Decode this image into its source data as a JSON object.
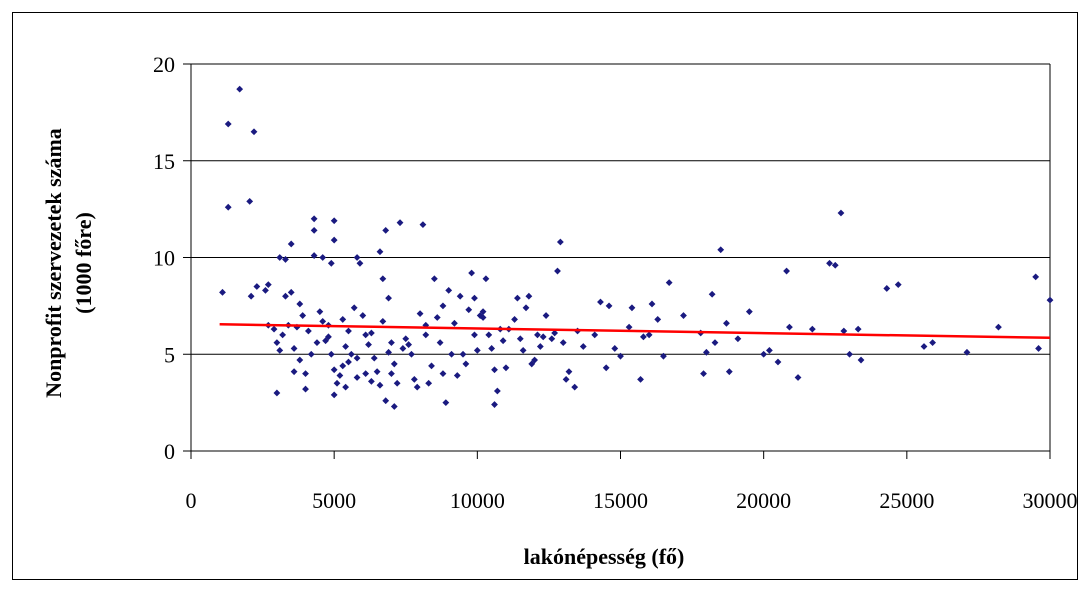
{
  "chart_data": {
    "type": "scatter",
    "title": "",
    "xlabel": "lakónépesség (fő)",
    "ylabel_line1": "Nonprofit szervezetek száma",
    "ylabel_line2": "(1000 főre)",
    "xlim": [
      0,
      30000
    ],
    "ylim": [
      0,
      20
    ],
    "x_ticks": [
      0,
      5000,
      10000,
      15000,
      20000,
      25000,
      30000
    ],
    "y_ticks": [
      0,
      5,
      10,
      15,
      20
    ],
    "grid": "horizontal",
    "legend": "none",
    "colors": {
      "points": "#1a1a80",
      "trendline": "#ff0000",
      "gridline": "#000000"
    },
    "series": [
      {
        "points": [
          [
            1300,
            16.9
          ],
          [
            1700,
            18.7
          ],
          [
            2200,
            16.5
          ],
          [
            2050,
            12.9
          ],
          [
            1300,
            12.6
          ],
          [
            1100,
            8.2
          ],
          [
            2100,
            8.0
          ],
          [
            2300,
            8.5
          ],
          [
            2700,
            8.6
          ],
          [
            2600,
            8.3
          ],
          [
            2900,
            6.3
          ],
          [
            2700,
            6.5
          ],
          [
            3000,
            5.6
          ],
          [
            3100,
            5.2
          ],
          [
            3000,
            3.0
          ],
          [
            3100,
            10.0
          ],
          [
            3300,
            9.9
          ],
          [
            3500,
            10.7
          ],
          [
            3300,
            8.0
          ],
          [
            3500,
            8.2
          ],
          [
            3400,
            6.5
          ],
          [
            3700,
            6.4
          ],
          [
            3600,
            5.3
          ],
          [
            3800,
            4.7
          ],
          [
            4000,
            4.0
          ],
          [
            3800,
            7.6
          ],
          [
            4100,
            6.2
          ],
          [
            4300,
            12.0
          ],
          [
            4300,
            11.4
          ],
          [
            4300,
            10.1
          ],
          [
            4600,
            10.0
          ],
          [
            4500,
            7.2
          ],
          [
            4600,
            6.7
          ],
          [
            4400,
            5.6
          ],
          [
            4800,
            6.5
          ],
          [
            4700,
            5.7
          ],
          [
            4900,
            5.0
          ],
          [
            5000,
            11.9
          ],
          [
            4900,
            9.7
          ],
          [
            5000,
            10.9
          ],
          [
            5000,
            4.2
          ],
          [
            5100,
            3.5
          ],
          [
            5200,
            3.9
          ],
          [
            5300,
            4.4
          ],
          [
            5400,
            5.4
          ],
          [
            5300,
            6.8
          ],
          [
            5500,
            6.2
          ],
          [
            5600,
            5.0
          ],
          [
            5800,
            4.8
          ],
          [
            5800,
            3.8
          ],
          [
            5800,
            10.0
          ],
          [
            5900,
            9.7
          ],
          [
            6000,
            7.0
          ],
          [
            6100,
            6.0
          ],
          [
            6200,
            5.5
          ],
          [
            6300,
            3.6
          ],
          [
            6400,
            4.8
          ],
          [
            6500,
            4.1
          ],
          [
            6600,
            10.3
          ],
          [
            6700,
            8.9
          ],
          [
            6800,
            11.4
          ],
          [
            6700,
            6.7
          ],
          [
            6900,
            7.9
          ],
          [
            7000,
            5.6
          ],
          [
            7100,
            4.5
          ],
          [
            7200,
            3.5
          ],
          [
            7100,
            2.3
          ],
          [
            6800,
            2.6
          ],
          [
            7300,
            11.8
          ],
          [
            7500,
            5.8
          ],
          [
            7700,
            5.0
          ],
          [
            7800,
            3.7
          ],
          [
            7900,
            3.3
          ],
          [
            8100,
            11.7
          ],
          [
            8000,
            7.1
          ],
          [
            8200,
            6.5
          ],
          [
            8300,
            3.5
          ],
          [
            8500,
            8.9
          ],
          [
            8600,
            6.9
          ],
          [
            8700,
            5.6
          ],
          [
            8800,
            4.0
          ],
          [
            9000,
            8.3
          ],
          [
            9100,
            5.0
          ],
          [
            9300,
            3.9
          ],
          [
            9500,
            5.0
          ],
          [
            9600,
            4.5
          ],
          [
            9700,
            7.3
          ],
          [
            9800,
            9.2
          ],
          [
            9900,
            6.0
          ],
          [
            10000,
            5.2
          ],
          [
            10100,
            7.0
          ],
          [
            10200,
            6.9
          ],
          [
            10300,
            8.9
          ],
          [
            10400,
            6.0
          ],
          [
            10500,
            5.3
          ],
          [
            10600,
            4.2
          ],
          [
            10700,
            3.1
          ],
          [
            10600,
            2.4
          ],
          [
            10800,
            6.3
          ],
          [
            11100,
            6.3
          ],
          [
            11400,
            7.9
          ],
          [
            11500,
            5.8
          ],
          [
            11600,
            5.2
          ],
          [
            11800,
            8.0
          ],
          [
            12000,
            4.7
          ],
          [
            12100,
            6.0
          ],
          [
            12200,
            5.4
          ],
          [
            12400,
            7.0
          ],
          [
            12600,
            5.8
          ],
          [
            12800,
            9.3
          ],
          [
            12900,
            10.8
          ],
          [
            13000,
            5.6
          ],
          [
            13200,
            4.1
          ],
          [
            13400,
            3.3
          ],
          [
            13700,
            5.4
          ],
          [
            14100,
            6.0
          ],
          [
            14300,
            7.7
          ],
          [
            14500,
            4.3
          ],
          [
            14600,
            7.5
          ],
          [
            14800,
            5.3
          ],
          [
            15000,
            4.9
          ],
          [
            15300,
            6.4
          ],
          [
            15400,
            7.4
          ],
          [
            15700,
            3.7
          ],
          [
            16000,
            6.0
          ],
          [
            16100,
            7.6
          ],
          [
            16500,
            4.9
          ],
          [
            16700,
            8.7
          ],
          [
            17200,
            7.0
          ],
          [
            17800,
            6.1
          ],
          [
            18000,
            5.1
          ],
          [
            18200,
            8.1
          ],
          [
            18500,
            10.4
          ],
          [
            18700,
            6.6
          ],
          [
            18800,
            4.1
          ],
          [
            19100,
            5.8
          ],
          [
            19500,
            7.2
          ],
          [
            20200,
            5.2
          ],
          [
            20500,
            4.6
          ],
          [
            20800,
            9.3
          ],
          [
            20900,
            6.4
          ],
          [
            21200,
            3.8
          ],
          [
            21700,
            6.3
          ],
          [
            22300,
            9.7
          ],
          [
            22500,
            9.6
          ],
          [
            22700,
            12.3
          ],
          [
            22800,
            6.2
          ],
          [
            23000,
            5.0
          ],
          [
            23300,
            6.3
          ],
          [
            23400,
            4.7
          ],
          [
            24300,
            8.4
          ],
          [
            24700,
            8.6
          ],
          [
            25600,
            5.4
          ],
          [
            25900,
            5.6
          ],
          [
            27100,
            5.1
          ],
          [
            28200,
            6.4
          ],
          [
            29500,
            9.0
          ],
          [
            29600,
            5.3
          ],
          [
            30000,
            7.8
          ],
          [
            3200,
            6.0
          ],
          [
            3900,
            7.0
          ],
          [
            4200,
            5.0
          ],
          [
            5500,
            4.6
          ],
          [
            6100,
            4.0
          ],
          [
            6600,
            3.4
          ],
          [
            7400,
            5.3
          ],
          [
            8400,
            4.4
          ],
          [
            9200,
            6.6
          ],
          [
            10900,
            5.7
          ],
          [
            11900,
            4.5
          ],
          [
            12700,
            6.1
          ],
          [
            5700,
            7.4
          ],
          [
            4000,
            3.2
          ],
          [
            5000,
            2.9
          ],
          [
            6300,
            6.1
          ],
          [
            7600,
            5.5
          ],
          [
            8800,
            7.5
          ],
          [
            9900,
            7.9
          ],
          [
            11300,
            6.8
          ],
          [
            12300,
            5.9
          ],
          [
            3600,
            4.1
          ],
          [
            5400,
            3.3
          ],
          [
            7000,
            4.0
          ],
          [
            8900,
            2.5
          ],
          [
            11000,
            4.3
          ],
          [
            13100,
            3.7
          ],
          [
            15800,
            5.9
          ],
          [
            18300,
            5.6
          ],
          [
            20000,
            5.0
          ],
          [
            9400,
            8.0
          ],
          [
            10200,
            7.2
          ],
          [
            4800,
            5.9
          ],
          [
            6900,
            5.1
          ],
          [
            8200,
            6.0
          ],
          [
            11700,
            7.4
          ],
          [
            13500,
            6.2
          ],
          [
            16300,
            6.8
          ],
          [
            17900,
            4.0
          ]
        ]
      }
    ],
    "trendline": {
      "x": [
        1000,
        30000
      ],
      "y": [
        6.55,
        5.85
      ]
    }
  }
}
